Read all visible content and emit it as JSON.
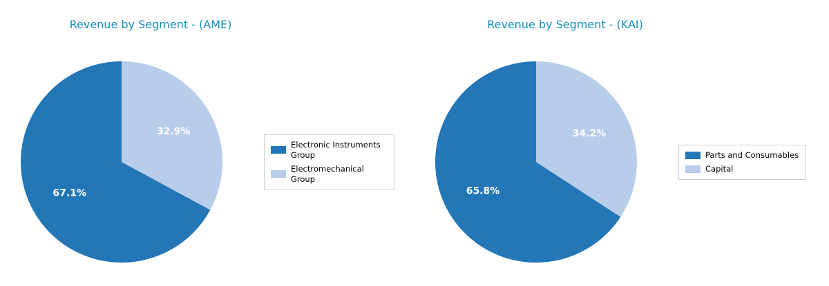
{
  "style": {
    "background": "#ffffff",
    "title_color": "#1590b8",
    "legend_border_color": "#cccccc",
    "pct_label_color": "#ffffff"
  },
  "chart_data": [
    {
      "type": "pie",
      "title": "Revenue by Segment - (AME)",
      "labels": [
        "Electronic Instruments Group",
        "Electromechanical Group"
      ],
      "values": [
        67.1,
        32.9
      ],
      "pct_labels": [
        "67.1%",
        "32.9%"
      ],
      "colors": [
        "#2377b6",
        "#b7cde9"
      ],
      "start_angle": 90,
      "direction": "counterclockwise",
      "legend_position": "right"
    },
    {
      "type": "pie",
      "title": "Revenue by Segment - (KAI)",
      "labels": [
        "Parts and Consumables",
        "Capital"
      ],
      "values": [
        65.8,
        34.2
      ],
      "pct_labels": [
        "65.8%",
        "34.2%"
      ],
      "colors": [
        "#2377b6",
        "#b7cde9"
      ],
      "start_angle": 90,
      "direction": "counterclockwise",
      "legend_position": "right"
    }
  ]
}
